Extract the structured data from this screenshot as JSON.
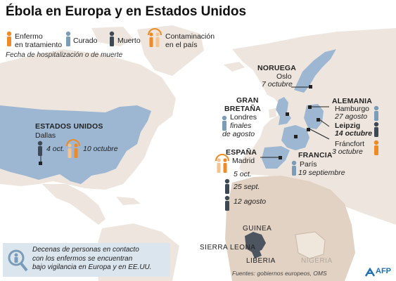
{
  "title": "Ébola en Europa y en Estados Unidos",
  "legend": {
    "enfermo": "Enfermo\nen tratamiento",
    "curado": "Curado",
    "muerto": "Muerto",
    "contaminacion": "Contaminación\nen el país",
    "fecha": "Fecha de hospitalización o de muerte"
  },
  "colors": {
    "enfermo": "#f08a24",
    "curado": "#7a9cb8",
    "muerto": "#3d4a55",
    "land": "#eee6de",
    "africa": "#e2d2c3",
    "highlight": "#9db7d2",
    "ocean": "#ffffff"
  },
  "usa": {
    "name": "ESTADOS UNIDOS",
    "city": "Dallas",
    "date1": "4 oct.",
    "date2": "10 octubre"
  },
  "noruega": {
    "name": "NORUEGA",
    "city": "Oslo",
    "date": "7 octubre"
  },
  "gb": {
    "name1": "GRAN",
    "name2": "BRETAÑA",
    "city": "Londres",
    "date1": "finales",
    "date2": "de agosto"
  },
  "alemania": {
    "name": "ALEMANIA",
    "city1": "Hamburgo",
    "date1": "27 agosto",
    "city2": "Leipzig",
    "date2": "14 octubre",
    "city3": "Fráncfort",
    "date3": "3 octubre"
  },
  "espana": {
    "name": "ESPAÑA",
    "city": "Madrid",
    "date1": "5 oct.",
    "date2": "25 sept.",
    "date3": "12 agosto"
  },
  "francia": {
    "name": "FRANCIA",
    "city": "París",
    "date": "19 septiembre"
  },
  "africa": {
    "guinea": "GUINEA",
    "sierra": "SIERRA LEONA",
    "liberia": "LIBERIA",
    "nigeria": "NIGERIA"
  },
  "footnote": "Decenas de personas en contacto\ncon los enfermos se encuentran\nbajo vigilancia en Europa y en EE.UU.",
  "sources": "Fuentes: gobiernos europeos, OMS",
  "brand": "AFP"
}
